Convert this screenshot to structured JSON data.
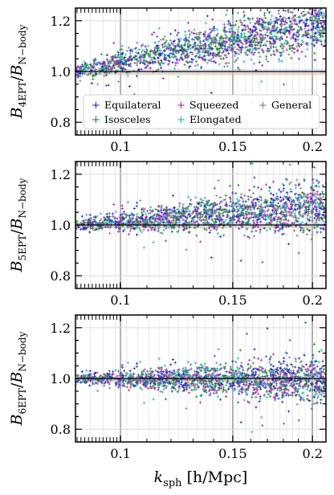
{
  "chart_data": [
    {
      "type": "scatter",
      "ylabel": "B_{4EPT}/B_{N−body}",
      "ylabel_parts": {
        "main": "B",
        "sub1": "4EPT",
        "sep": "/",
        "main2": "B",
        "sub2": "N−body"
      },
      "xlim": [
        0.085,
        0.21
      ],
      "ylim": [
        0.75,
        1.25
      ],
      "x_scale": "log",
      "xticks": [
        0.1,
        0.15,
        0.2
      ],
      "xtick_labels": [
        "0.1",
        "0.15",
        "0.2"
      ],
      "yticks": [
        0.8,
        1.0,
        1.2
      ],
      "ytick_labels": [
        "0.8",
        "1.0",
        "1.2"
      ],
      "reference_line": 1.0,
      "band": [
        0.99,
        1.01
      ],
      "trend": {
        "start": [
          0.085,
          1.0
        ],
        "end": [
          0.21,
          1.19
        ],
        "spread_start": 0.015,
        "spread_end": 0.055
      },
      "legend": {
        "position": "lower-center",
        "entries": [
          {
            "label": "Equilateral",
            "marker": "+",
            "color": "#1f1fd6"
          },
          {
            "label": "Squeezed",
            "marker": "+",
            "color": "#b21fb2"
          },
          {
            "label": "General",
            "marker": "+",
            "color": "#7f7f7f"
          },
          {
            "label": "Isosceles",
            "marker": "+",
            "color": "#1a8a1a"
          },
          {
            "label": "Elongated",
            "marker": "+",
            "color": "#1fb5c0"
          }
        ]
      }
    },
    {
      "type": "scatter",
      "ylabel": "B_{5EPT}/B_{N−body}",
      "ylabel_parts": {
        "main": "B",
        "sub1": "5EPT",
        "sep": "/",
        "main2": "B",
        "sub2": "N−body"
      },
      "xlim": [
        0.085,
        0.21
      ],
      "ylim": [
        0.75,
        1.25
      ],
      "x_scale": "log",
      "xticks": [
        0.1,
        0.15,
        0.2
      ],
      "xtick_labels": [
        "0.1",
        "0.15",
        "0.2"
      ],
      "yticks": [
        0.8,
        1.0,
        1.2
      ],
      "ytick_labels": [
        "0.8",
        "1.0",
        "1.2"
      ],
      "reference_line": 1.0,
      "band": [
        0.99,
        1.01
      ],
      "trend": {
        "start": [
          0.085,
          1.0
        ],
        "end": [
          0.21,
          1.07
        ],
        "spread_start": 0.012,
        "spread_end": 0.05
      }
    },
    {
      "type": "scatter",
      "xlabel": "k_sph [h/Mpc]",
      "xlabel_parts": {
        "main": "k",
        "sub": "sph",
        "unit": " [h/Mpc]"
      },
      "ylabel": "B_{6EPT}/B_{N−body}",
      "ylabel_parts": {
        "main": "B",
        "sub1": "6EPT",
        "sep": "/",
        "main2": "B",
        "sub2": "N−body"
      },
      "xlim": [
        0.085,
        0.21
      ],
      "ylim": [
        0.75,
        1.25
      ],
      "x_scale": "log",
      "xticks": [
        0.1,
        0.15,
        0.2
      ],
      "xtick_labels": [
        "0.1",
        "0.15",
        "0.2"
      ],
      "yticks": [
        0.8,
        1.0,
        1.2
      ],
      "ytick_labels": [
        "0.8",
        "1.0",
        "1.2"
      ],
      "reference_line": 1.0,
      "band": [
        0.99,
        1.01
      ],
      "trend": {
        "start": [
          0.085,
          1.0
        ],
        "end": [
          0.21,
          0.99
        ],
        "spread_start": 0.01,
        "spread_end": 0.045
      }
    }
  ],
  "colors": {
    "equilateral": "#1f1fd6",
    "isosceles": "#1a8a1a",
    "squeezed": "#b21fb2",
    "elongated": "#1fb5c0",
    "general": "#7f7f7f",
    "reference_line": "#000000",
    "band": "#c9c9e8",
    "band_edge": "#e8b030"
  }
}
